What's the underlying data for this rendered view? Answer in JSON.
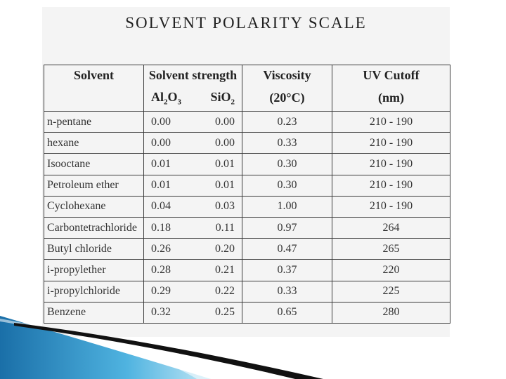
{
  "title": "SOLVENT POLARITY SCALE",
  "headers": {
    "solvent": "Solvent",
    "strength": "Solvent strength",
    "viscosity": "Viscosity",
    "uv": "UV Cutoff",
    "al2o3_prefix": "Al",
    "al2o3_sub1": "2",
    "al2o3_mid": "O",
    "al2o3_sub2": "3",
    "sio2_prefix": "SiO",
    "sio2_sub": "2",
    "viscosity_unit": "(20°C)",
    "uv_unit": "(nm)"
  },
  "rows": [
    {
      "solvent": "n-pentane",
      "al2o3": "0.00",
      "sio2": "0.00",
      "viscosity": "0.23",
      "uv": "210 - 190"
    },
    {
      "solvent": "hexane",
      "al2o3": "0.00",
      "sio2": "0.00",
      "viscosity": "0.33",
      "uv": "210 - 190"
    },
    {
      "solvent": "Isooctane",
      "al2o3": "0.01",
      "sio2": "0.01",
      "viscosity": "0.30",
      "uv": "210 - 190"
    },
    {
      "solvent": "Petroleum ether",
      "al2o3": "0.01",
      "sio2": "0.01",
      "viscosity": "0.30",
      "uv": "210 - 190"
    },
    {
      "solvent": "Cyclohexane",
      "al2o3": "0.04",
      "sio2": "0.03",
      "viscosity": "1.00",
      "uv": "210 - 190"
    },
    {
      "solvent": "Carbontetrachloride",
      "al2o3": "0.18",
      "sio2": "0.11",
      "viscosity": "0.97",
      "uv": "264"
    },
    {
      "solvent": "Butyl chloride",
      "al2o3": "0.26",
      "sio2": "0.20",
      "viscosity": "0.47",
      "uv": "265"
    },
    {
      "solvent": "i-propylether",
      "al2o3": "0.28",
      "sio2": "0.21",
      "viscosity": "0.37",
      "uv": "220"
    },
    {
      "solvent": "i-propylchloride",
      "al2o3": "0.29",
      "sio2": "0.22",
      "viscosity": "0.33",
      "uv": "225"
    },
    {
      "solvent": "Benzene",
      "al2o3": "0.32",
      "sio2": "0.25",
      "viscosity": "0.65",
      "uv": "280"
    }
  ]
}
